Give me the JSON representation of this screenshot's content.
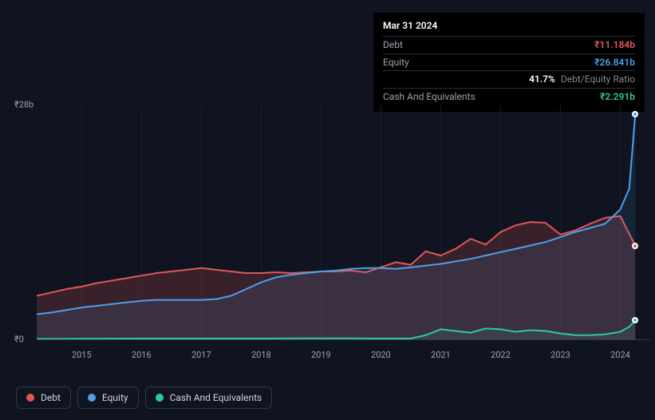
{
  "tooltip": {
    "date": "Mar 31 2024",
    "rows": [
      {
        "label": "Debt",
        "value": "₹11.184b",
        "color": "#e15759",
        "suffix": ""
      },
      {
        "label": "Equity",
        "value": "₹26.841b",
        "color": "#4e9fe8",
        "suffix": ""
      },
      {
        "label": "",
        "value": "41.7%",
        "color": "#ffffff",
        "suffix": "Debt/Equity Ratio"
      },
      {
        "label": "Cash And Equivalents",
        "value": "₹2.291b",
        "color": "#2dc9a4",
        "suffix": ""
      }
    ]
  },
  "chart": {
    "type": "area",
    "y_max": 28,
    "y_min": 0,
    "y_unit": "b",
    "y_currency": "₹",
    "y_ticks": [
      {
        "v": 28,
        "label": "₹28b"
      },
      {
        "v": 0,
        "label": "₹0"
      }
    ],
    "x_labels": [
      "2015",
      "2016",
      "2017",
      "2018",
      "2019",
      "2020",
      "2021",
      "2022",
      "2023",
      "2024"
    ],
    "x_min": 2014.25,
    "x_max": 2024.5,
    "background_color": "#0f1420",
    "grid_color": "#1a1f2b",
    "axis_color": "#323844",
    "series": [
      {
        "name": "Debt",
        "color": "#e15759",
        "fill": "rgba(225,87,89,0.20)",
        "line_width": 2,
        "marker_x": 2024.25,
        "marker_y": 11.184,
        "points": [
          [
            2014.25,
            5.2
          ],
          [
            2014.5,
            5.6
          ],
          [
            2014.75,
            6.0
          ],
          [
            2015,
            6.3
          ],
          [
            2015.25,
            6.7
          ],
          [
            2015.5,
            7.0
          ],
          [
            2015.75,
            7.3
          ],
          [
            2016,
            7.6
          ],
          [
            2016.25,
            7.9
          ],
          [
            2016.5,
            8.1
          ],
          [
            2016.75,
            8.3
          ],
          [
            2017,
            8.5
          ],
          [
            2017.25,
            8.3
          ],
          [
            2017.5,
            8.1
          ],
          [
            2017.75,
            7.9
          ],
          [
            2018,
            7.9
          ],
          [
            2018.25,
            8.0
          ],
          [
            2018.5,
            7.9
          ],
          [
            2018.75,
            8.0
          ],
          [
            2019,
            8.1
          ],
          [
            2019.25,
            8.1
          ],
          [
            2019.5,
            8.2
          ],
          [
            2019.75,
            8.0
          ],
          [
            2020,
            8.6
          ],
          [
            2020.25,
            9.2
          ],
          [
            2020.5,
            8.9
          ],
          [
            2020.75,
            10.5
          ],
          [
            2021,
            10.0
          ],
          [
            2021.25,
            10.8
          ],
          [
            2021.5,
            12.0
          ],
          [
            2021.75,
            11.3
          ],
          [
            2022,
            12.8
          ],
          [
            2022.25,
            13.6
          ],
          [
            2022.5,
            14.0
          ],
          [
            2022.75,
            13.9
          ],
          [
            2023,
            12.5
          ],
          [
            2023.25,
            13.0
          ],
          [
            2023.5,
            13.8
          ],
          [
            2023.75,
            14.5
          ],
          [
            2024,
            14.7
          ],
          [
            2024.25,
            11.184
          ]
        ]
      },
      {
        "name": "Equity",
        "color": "#4e9fe8",
        "fill": "rgba(78,159,232,0.12)",
        "line_width": 2,
        "marker_x": 2024.25,
        "marker_y": 26.841,
        "points": [
          [
            2014.25,
            3.0
          ],
          [
            2014.5,
            3.2
          ],
          [
            2014.75,
            3.5
          ],
          [
            2015,
            3.8
          ],
          [
            2015.25,
            4.0
          ],
          [
            2015.5,
            4.2
          ],
          [
            2015.75,
            4.4
          ],
          [
            2016,
            4.6
          ],
          [
            2016.25,
            4.7
          ],
          [
            2016.5,
            4.7
          ],
          [
            2016.75,
            4.7
          ],
          [
            2017,
            4.7
          ],
          [
            2017.25,
            4.8
          ],
          [
            2017.5,
            5.2
          ],
          [
            2017.75,
            6.0
          ],
          [
            2018,
            6.8
          ],
          [
            2018.25,
            7.4
          ],
          [
            2018.5,
            7.7
          ],
          [
            2018.75,
            7.9
          ],
          [
            2019,
            8.1
          ],
          [
            2019.25,
            8.2
          ],
          [
            2019.5,
            8.4
          ],
          [
            2019.75,
            8.5
          ],
          [
            2020,
            8.5
          ],
          [
            2020.25,
            8.4
          ],
          [
            2020.5,
            8.6
          ],
          [
            2020.75,
            8.8
          ],
          [
            2021,
            9.0
          ],
          [
            2021.25,
            9.3
          ],
          [
            2021.5,
            9.6
          ],
          [
            2021.75,
            10.0
          ],
          [
            2022,
            10.4
          ],
          [
            2022.25,
            10.8
          ],
          [
            2022.5,
            11.2
          ],
          [
            2022.75,
            11.6
          ],
          [
            2023,
            12.2
          ],
          [
            2023.25,
            12.8
          ],
          [
            2023.5,
            13.3
          ],
          [
            2023.75,
            13.8
          ],
          [
            2024,
            15.5
          ],
          [
            2024.15,
            18.0
          ],
          [
            2024.25,
            26.841
          ]
        ]
      },
      {
        "name": "Cash And Equivalents",
        "color": "#2dc9a4",
        "fill": "rgba(45,201,164,0.10)",
        "line_width": 2,
        "marker_x": 2024.25,
        "marker_y": 2.291,
        "points": [
          [
            2014.25,
            0.05
          ],
          [
            2015,
            0.07
          ],
          [
            2016,
            0.1
          ],
          [
            2017,
            0.1
          ],
          [
            2018,
            0.1
          ],
          [
            2019,
            0.12
          ],
          [
            2019.5,
            0.12
          ],
          [
            2020,
            0.1
          ],
          [
            2020.5,
            0.1
          ],
          [
            2020.75,
            0.5
          ],
          [
            2021,
            1.2
          ],
          [
            2021.25,
            1.0
          ],
          [
            2021.5,
            0.8
          ],
          [
            2021.75,
            1.3
          ],
          [
            2022,
            1.2
          ],
          [
            2022.25,
            0.9
          ],
          [
            2022.5,
            1.1
          ],
          [
            2022.75,
            1.0
          ],
          [
            2023,
            0.7
          ],
          [
            2023.25,
            0.5
          ],
          [
            2023.5,
            0.5
          ],
          [
            2023.75,
            0.6
          ],
          [
            2024,
            0.9
          ],
          [
            2024.15,
            1.5
          ],
          [
            2024.25,
            2.291
          ]
        ]
      }
    ]
  },
  "legend": [
    {
      "label": "Debt",
      "color": "#e15759"
    },
    {
      "label": "Equity",
      "color": "#4e9fe8"
    },
    {
      "label": "Cash And Equivalents",
      "color": "#2dc9a4"
    }
  ]
}
